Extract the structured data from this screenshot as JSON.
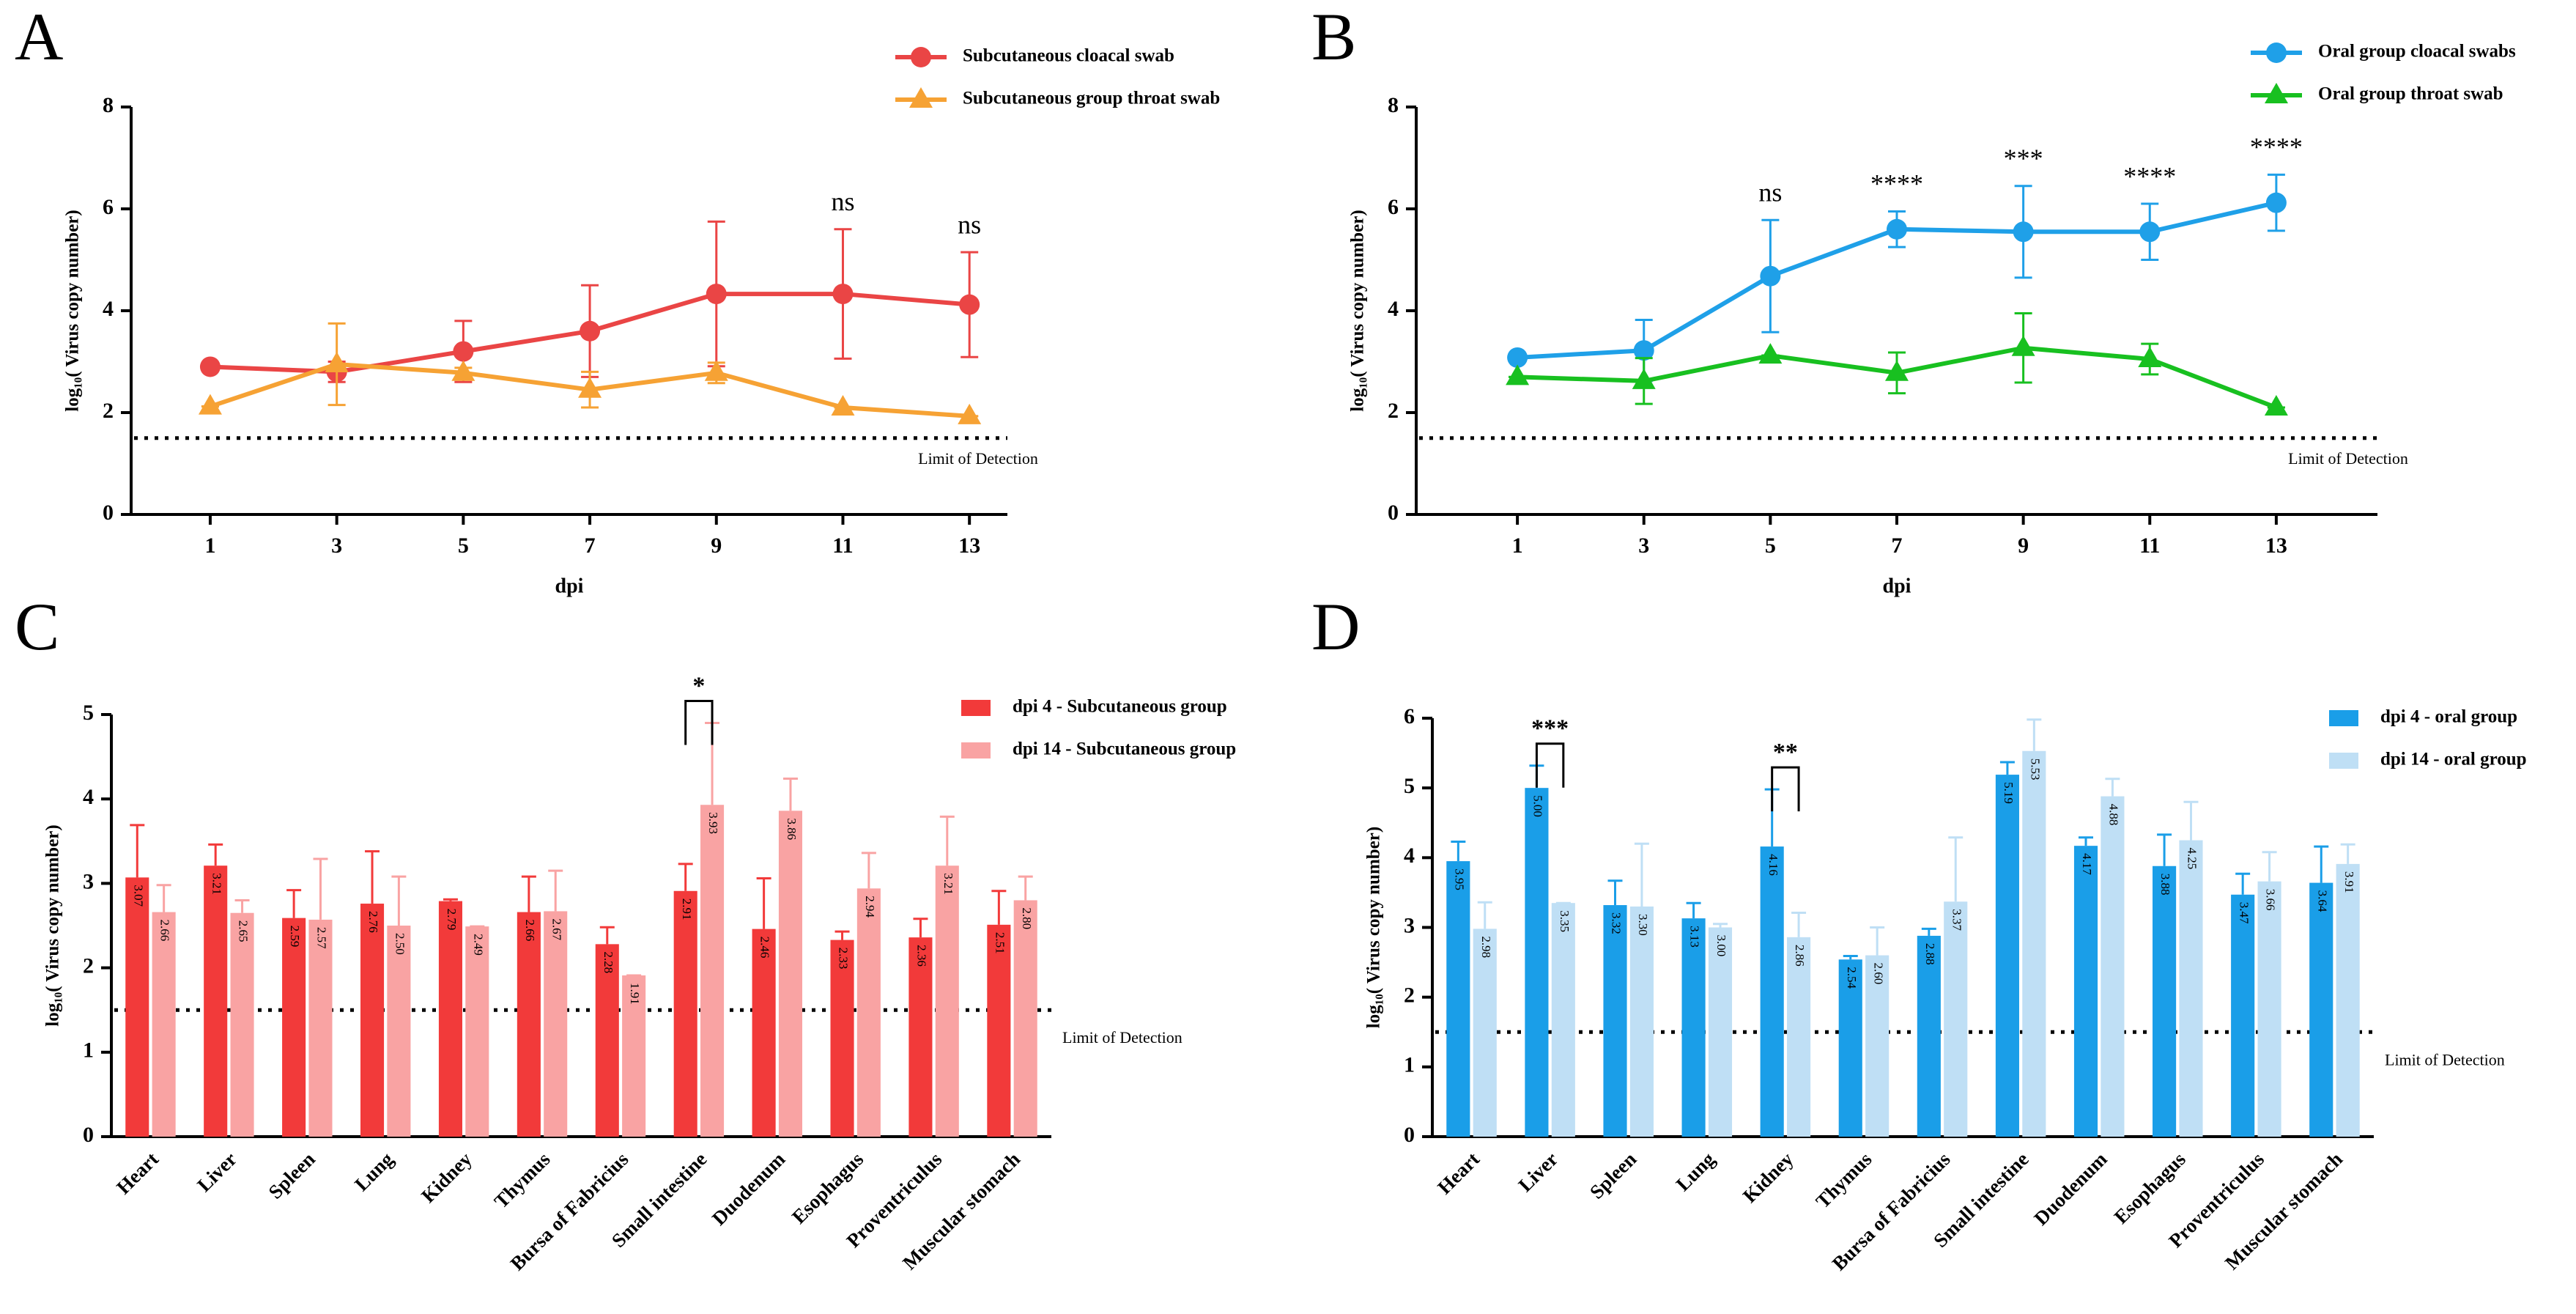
{
  "chart_data": [
    {
      "type": "line",
      "panel_label": "A",
      "x_label": "dpi",
      "y_label": "log₁₀( Virus copy number)",
      "x": [
        1,
        3,
        5,
        7,
        9,
        11,
        13
      ],
      "xlim": [
        -0.25,
        13.6
      ],
      "xticks": [
        1,
        3,
        5,
        7,
        9,
        11,
        13
      ],
      "ylim": [
        0,
        8
      ],
      "yticks": [
        0,
        2,
        4,
        6,
        8
      ],
      "legend": "top right",
      "series": [
        {
          "name": "Subcutaneous cloacal swab",
          "color": "#ea4545",
          "marker": "circle",
          "values": [
            2.9,
            2.8,
            3.2,
            3.6,
            4.33,
            4.33,
            4.12
          ],
          "errors": [
            0,
            0.2,
            0.6,
            0.9,
            1.42,
            1.27,
            1.03
          ]
        },
        {
          "name": "Subcutaneous group throat swab",
          "color": "#f6a234",
          "marker": "triangle",
          "values": [
            2.12,
            2.95,
            2.78,
            2.45,
            2.78,
            2.1,
            1.93
          ],
          "errors": [
            0,
            0.8,
            0.1,
            0.35,
            0.2,
            0,
            0
          ]
        }
      ],
      "reference_line": {
        "value": 1.5,
        "label": "Limit of Detection"
      },
      "annotations": [
        {
          "x": 11,
          "text": "ns"
        },
        {
          "x": 13,
          "text": "ns"
        }
      ]
    },
    {
      "type": "line",
      "panel_label": "B",
      "x_label": "dpi",
      "y_label": "log₁₀( Virus copy number)",
      "x": [
        1,
        3,
        5,
        7,
        9,
        11,
        13
      ],
      "xlim": [
        -0.6,
        14.6
      ],
      "xticks": [
        1,
        3,
        5,
        7,
        9,
        11,
        13
      ],
      "ylim": [
        0,
        8
      ],
      "yticks": [
        0,
        2,
        4,
        6,
        8
      ],
      "legend": "top right",
      "series": [
        {
          "name": "Oral group cloacal swabs",
          "color": "#1fa0e8",
          "marker": "circle",
          "values": [
            3.08,
            3.22,
            4.68,
            5.6,
            5.55,
            5.55,
            6.12
          ],
          "errors": [
            0,
            0.6,
            1.1,
            0.35,
            0.9,
            0.55,
            0.55
          ]
        },
        {
          "name": "Oral group throat swab",
          "color": "#18c020",
          "marker": "triangle",
          "values": [
            2.7,
            2.62,
            3.12,
            2.78,
            3.27,
            3.05,
            2.1
          ],
          "errors": [
            0,
            0.45,
            0,
            0.4,
            0.68,
            0.3,
            0
          ]
        }
      ],
      "reference_line": {
        "value": 1.5,
        "label": "Limit of Detection"
      },
      "annotations": [
        {
          "x": 5,
          "text": "ns"
        },
        {
          "x": 7,
          "text": "****"
        },
        {
          "x": 9,
          "text": "***"
        },
        {
          "x": 11,
          "text": "****"
        },
        {
          "x": 13,
          "text": "****"
        }
      ]
    },
    {
      "type": "bar",
      "panel_label": "C",
      "y_label": "log₁₀( Virus copy number)",
      "categories": [
        "Heart",
        "Liver",
        "Spleen",
        "Lung",
        "Kidney",
        "Thymus",
        "Bursa of Fabricius",
        "Small intestine",
        "Duodenum",
        "Esophagus",
        "Proventriculus",
        "Muscular stomach"
      ],
      "ylim": [
        0,
        5
      ],
      "yticks": [
        0,
        1,
        2,
        3,
        4,
        5
      ],
      "legend": "top right",
      "series": [
        {
          "name": "dpi 4 - Subcutaneous group",
          "color": "#f23a3a",
          "values": [
            3.07,
            3.21,
            2.59,
            2.76,
            2.79,
            2.66,
            2.28,
            2.91,
            2.46,
            2.33,
            2.36,
            2.51
          ],
          "value_labels": [
            "3.07",
            "3.21",
            "2.59",
            "2.76",
            "2.79",
            "2.66",
            "2.28",
            "2.91",
            "2.46",
            "2.33",
            "2.36",
            "2.51"
          ],
          "errors": [
            0.62,
            0.25,
            0.33,
            0.62,
            0.02,
            0.42,
            0.2,
            0.32,
            0.6,
            0.1,
            0.22,
            0.4
          ]
        },
        {
          "name": "dpi 14 - Subcutaneous group",
          "color": "#f9a3a3",
          "values": [
            2.66,
            2.65,
            2.57,
            2.5,
            2.49,
            2.67,
            1.91,
            3.93,
            3.86,
            2.94,
            3.21,
            2.8
          ],
          "value_labels": [
            "2.66",
            "2.65",
            "2.57",
            "2.50",
            "2.49",
            "2.67",
            "1.91",
            "3.93",
            "3.86",
            "2.94",
            "3.21",
            "2.80"
          ],
          "errors": [
            0.32,
            0.15,
            0.72,
            0.58,
            0,
            0.48,
            0,
            0.97,
            0.38,
            0.42,
            0.58,
            0.28
          ]
        }
      ],
      "reference_line": {
        "value": 1.5,
        "label": "Limit of Detection"
      },
      "annotations": [
        {
          "category": "Small intestine",
          "text": "*"
        }
      ]
    },
    {
      "type": "bar",
      "panel_label": "D",
      "y_label": "log₁₀( Virus copy number)",
      "categories": [
        "Heart",
        "Liver",
        "Spleen",
        "Lung",
        "Kidney",
        "Thymus",
        "Bursa of Fabricius",
        "Small intestine",
        "Duodenum",
        "Esophagus",
        "Proventriculus",
        "Muscular stomach"
      ],
      "ylim": [
        0,
        6
      ],
      "yticks": [
        0,
        1,
        2,
        3,
        4,
        5,
        6
      ],
      "legend": "top right",
      "series": [
        {
          "name": "dpi 4 - oral group",
          "color": "#1a9ee8",
          "values": [
            3.95,
            5.0,
            3.32,
            3.13,
            4.16,
            2.54,
            2.88,
            5.19,
            4.17,
            3.88,
            3.47,
            3.64
          ],
          "value_labels": [
            "3.95",
            "5.00",
            "3.32",
            "3.13",
            "4.16",
            "2.54",
            "2.88",
            "5.19",
            "4.17",
            "3.88",
            "3.47",
            "3.64"
          ],
          "errors": [
            0.28,
            0.32,
            0.35,
            0.22,
            0.82,
            0.05,
            0.1,
            0.18,
            0.12,
            0.45,
            0.3,
            0.52
          ]
        },
        {
          "name": "dpi 14 - oral group",
          "color": "#bfdff5",
          "values": [
            2.98,
            3.35,
            3.3,
            3.0,
            2.86,
            2.6,
            3.37,
            5.53,
            4.88,
            4.25,
            3.66,
            3.91
          ],
          "value_labels": [
            "2.98",
            "3.35",
            "3.30",
            "3.00",
            "2.86",
            "2.60",
            "3.37",
            "5.53",
            "4.88",
            "4.25",
            "3.66",
            "3.91"
          ],
          "errors": [
            0.38,
            0,
            0.9,
            0.05,
            0.35,
            0.4,
            0.92,
            0.45,
            0.25,
            0.55,
            0.42,
            0.28
          ]
        }
      ],
      "reference_line": {
        "value": 1.5,
        "label": "Limit of Detection"
      },
      "annotations": [
        {
          "category": "Liver",
          "text": "***"
        },
        {
          "category": "Kidney",
          "text": "**"
        }
      ]
    }
  ]
}
